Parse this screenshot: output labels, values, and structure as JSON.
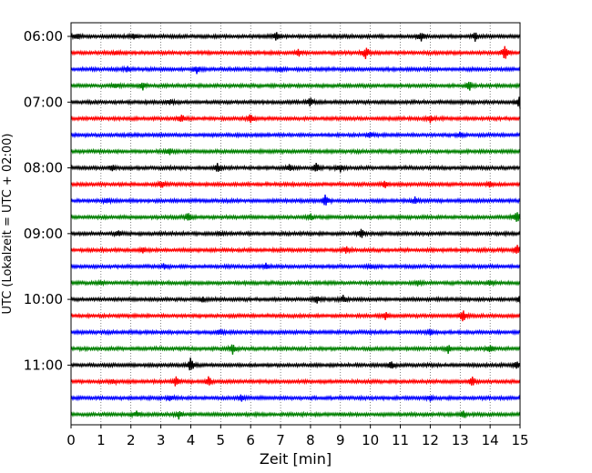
{
  "chart_data": {
    "type": "line",
    "subtype": "helicorder",
    "title": "",
    "xlabel": "Zeit  [min]",
    "ylabel": "UTC (Lokalzeit = UTC + 02:00)",
    "xlim": [
      0,
      15
    ],
    "x_ticks": [
      0,
      1,
      2,
      3,
      4,
      5,
      6,
      7,
      8,
      9,
      10,
      11,
      12,
      13,
      14,
      15
    ],
    "y_tick_labels": [
      "06:00",
      "07:00",
      "08:00",
      "09:00",
      "10:00",
      "11:00"
    ],
    "row_interval_minutes": 15,
    "row_start_times": [
      "06:00",
      "06:15",
      "06:30",
      "06:45",
      "07:00",
      "07:15",
      "07:30",
      "07:45",
      "08:00",
      "08:15",
      "08:30",
      "08:45",
      "09:00",
      "09:15",
      "09:30",
      "09:45",
      "10:00",
      "10:15",
      "10:30",
      "10:45",
      "11:00",
      "11:15",
      "11:30",
      "11:45"
    ],
    "row_colors": [
      "#000000",
      "#ff0000",
      "#0000ff",
      "#008000"
    ],
    "grid": "vertical dotted lines at every minute",
    "legend": "none",
    "events": [
      {
        "row": 0,
        "x": 0.2,
        "amp": 3
      },
      {
        "row": 0,
        "x": 2.1,
        "amp": 3
      },
      {
        "row": 0,
        "x": 6.85,
        "amp": 6
      },
      {
        "row": 0,
        "x": 11.7,
        "amp": 7
      },
      {
        "row": 0,
        "x": 13.5,
        "amp": 4
      },
      {
        "row": 1,
        "x": 1.5,
        "amp": 2
      },
      {
        "row": 1,
        "x": 7.6,
        "amp": 4
      },
      {
        "row": 1,
        "x": 9.85,
        "amp": 8
      },
      {
        "row": 1,
        "x": 14.5,
        "amp": 8
      },
      {
        "row": 2,
        "x": 1.9,
        "amp": 3
      },
      {
        "row": 2,
        "x": 4.2,
        "amp": 4
      },
      {
        "row": 2,
        "x": 7.0,
        "amp": 3
      },
      {
        "row": 3,
        "x": 1.5,
        "amp": 3
      },
      {
        "row": 3,
        "x": 2.4,
        "amp": 4
      },
      {
        "row": 3,
        "x": 13.3,
        "amp": 5
      },
      {
        "row": 4,
        "x": 3.3,
        "amp": 3
      },
      {
        "row": 4,
        "x": 8.0,
        "amp": 5
      },
      {
        "row": 4,
        "x": 15.0,
        "amp": 9
      },
      {
        "row": 5,
        "x": 3.7,
        "amp": 4
      },
      {
        "row": 5,
        "x": 6.0,
        "amp": 5
      },
      {
        "row": 5,
        "x": 12.0,
        "amp": 4
      },
      {
        "row": 6,
        "x": 10.0,
        "amp": 3
      },
      {
        "row": 6,
        "x": 13.0,
        "amp": 3
      },
      {
        "row": 7,
        "x": 3.3,
        "amp": 4
      },
      {
        "row": 8,
        "x": 1.4,
        "amp": 3
      },
      {
        "row": 8,
        "x": 4.9,
        "amp": 5
      },
      {
        "row": 8,
        "x": 7.3,
        "amp": 4
      },
      {
        "row": 8,
        "x": 8.2,
        "amp": 5
      },
      {
        "row": 8,
        "x": 9.0,
        "amp": 4
      },
      {
        "row": 9,
        "x": 3.0,
        "amp": 5
      },
      {
        "row": 9,
        "x": 10.5,
        "amp": 4
      },
      {
        "row": 9,
        "x": 14.0,
        "amp": 3
      },
      {
        "row": 10,
        "x": 1.2,
        "amp": 3
      },
      {
        "row": 10,
        "x": 8.5,
        "amp": 7
      },
      {
        "row": 10,
        "x": 11.5,
        "amp": 4
      },
      {
        "row": 11,
        "x": 3.9,
        "amp": 5
      },
      {
        "row": 11,
        "x": 8.0,
        "amp": 3
      },
      {
        "row": 11,
        "x": 14.9,
        "amp": 7
      },
      {
        "row": 12,
        "x": 1.6,
        "amp": 4
      },
      {
        "row": 12,
        "x": 9.7,
        "amp": 5
      },
      {
        "row": 12,
        "x": 5.0,
        "amp": 2
      },
      {
        "row": 13,
        "x": 2.4,
        "amp": 3
      },
      {
        "row": 13,
        "x": 9.2,
        "amp": 4
      },
      {
        "row": 13,
        "x": 14.9,
        "amp": 5
      },
      {
        "row": 14,
        "x": 3.1,
        "amp": 3
      },
      {
        "row": 14,
        "x": 6.5,
        "amp": 3
      },
      {
        "row": 14,
        "x": 10.0,
        "amp": 3
      },
      {
        "row": 15,
        "x": 1.0,
        "amp": 2
      },
      {
        "row": 15,
        "x": 11.6,
        "amp": 3
      },
      {
        "row": 15,
        "x": 14.0,
        "amp": 3
      },
      {
        "row": 16,
        "x": 4.4,
        "amp": 3
      },
      {
        "row": 16,
        "x": 8.2,
        "amp": 4
      },
      {
        "row": 16,
        "x": 9.1,
        "amp": 4
      },
      {
        "row": 16,
        "x": 15.0,
        "amp": 6
      },
      {
        "row": 17,
        "x": 10.5,
        "amp": 4
      },
      {
        "row": 17,
        "x": 13.1,
        "amp": 6
      },
      {
        "row": 18,
        "x": 5.0,
        "amp": 3
      },
      {
        "row": 18,
        "x": 12.0,
        "amp": 3
      },
      {
        "row": 19,
        "x": 5.4,
        "amp": 5
      },
      {
        "row": 19,
        "x": 12.6,
        "amp": 4
      },
      {
        "row": 19,
        "x": 14.0,
        "amp": 4
      },
      {
        "row": 20,
        "x": 4.0,
        "amp": 8
      },
      {
        "row": 20,
        "x": 10.7,
        "amp": 4
      },
      {
        "row": 20,
        "x": 14.9,
        "amp": 4
      },
      {
        "row": 21,
        "x": 1.4,
        "amp": 3
      },
      {
        "row": 21,
        "x": 3.5,
        "amp": 5
      },
      {
        "row": 21,
        "x": 4.6,
        "amp": 5
      },
      {
        "row": 21,
        "x": 13.4,
        "amp": 5
      },
      {
        "row": 22,
        "x": 3.3,
        "amp": 3
      },
      {
        "row": 22,
        "x": 5.7,
        "amp": 4
      },
      {
        "row": 22,
        "x": 12.0,
        "amp": 3
      },
      {
        "row": 23,
        "x": 2.2,
        "amp": 3
      },
      {
        "row": 23,
        "x": 3.6,
        "amp": 4
      },
      {
        "row": 23,
        "x": 13.1,
        "amp": 4
      }
    ]
  }
}
